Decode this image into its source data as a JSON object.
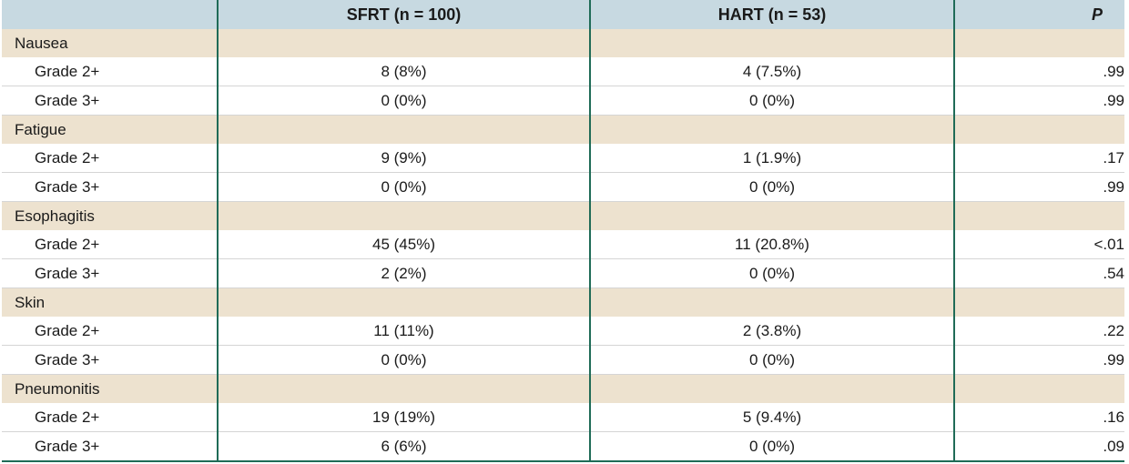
{
  "header": {
    "col0": "",
    "col1": "SFRT (n = 100)",
    "col2": "HART (n = 53)",
    "col3": "P"
  },
  "categories": [
    {
      "name": "Nausea",
      "rows": [
        {
          "grade": "Grade 2+",
          "sfrt": "8 (8%)",
          "hart": "4 (7.5%)",
          "p": ".99"
        },
        {
          "grade": "Grade 3+",
          "sfrt": "0 (0%)",
          "hart": "0 (0%)",
          "p": ".99"
        }
      ]
    },
    {
      "name": "Fatigue",
      "rows": [
        {
          "grade": "Grade 2+",
          "sfrt": "9 (9%)",
          "hart": "1 (1.9%)",
          "p": ".17"
        },
        {
          "grade": "Grade 3+",
          "sfrt": "0 (0%)",
          "hart": "0 (0%)",
          "p": ".99"
        }
      ]
    },
    {
      "name": "Esophagitis",
      "rows": [
        {
          "grade": "Grade 2+",
          "sfrt": "45 (45%)",
          "hart": "11 (20.8%)",
          "p": "<.01"
        },
        {
          "grade": "Grade 3+",
          "sfrt": "2 (2%)",
          "hart": "0 (0%)",
          "p": ".54"
        }
      ]
    },
    {
      "name": "Skin",
      "rows": [
        {
          "grade": "Grade 2+",
          "sfrt": "11 (11%)",
          "hart": "2 (3.8%)",
          "p": ".22"
        },
        {
          "grade": "Grade 3+",
          "sfrt": "0 (0%)",
          "hart": "0 (0%)",
          "p": ".99"
        }
      ]
    },
    {
      "name": "Pneumonitis",
      "rows": [
        {
          "grade": "Grade 2+",
          "sfrt": "19 (19%)",
          "hart": "5 (9.4%)",
          "p": ".16"
        },
        {
          "grade": "Grade 3+",
          "sfrt": "6 (6%)",
          "hart": "0 (0%)",
          "p": ".09"
        }
      ]
    }
  ]
}
